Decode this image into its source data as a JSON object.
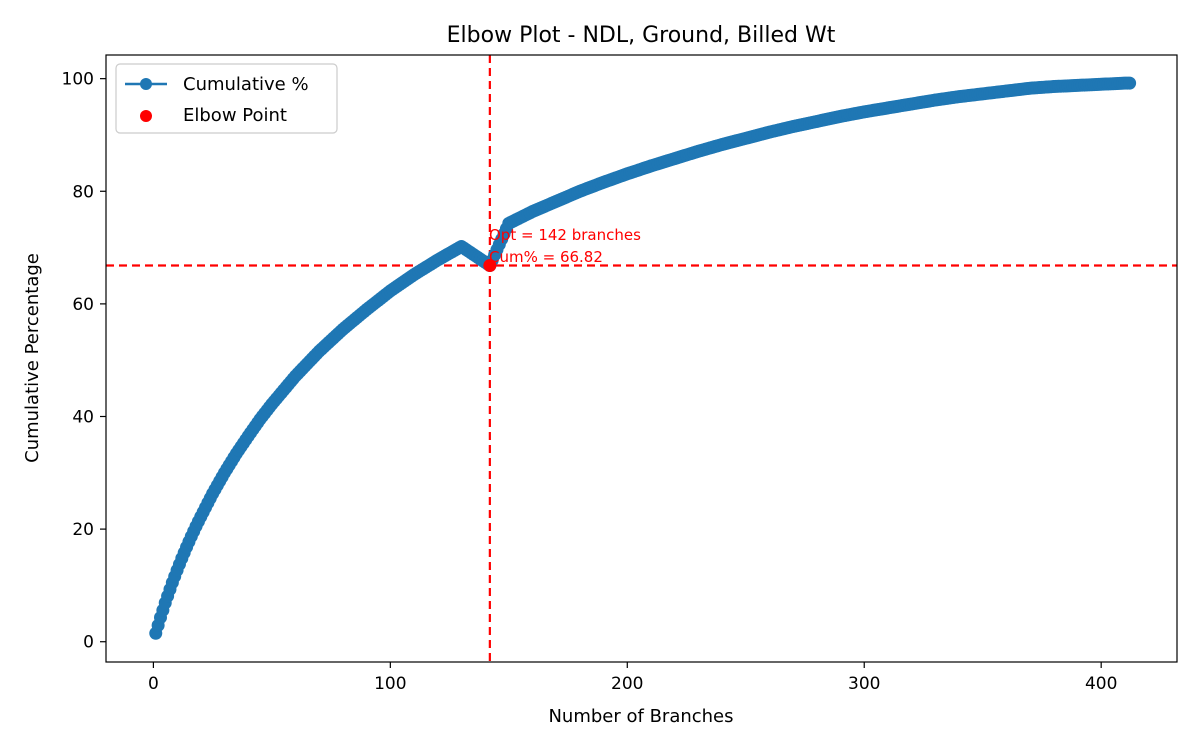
{
  "chart_data": {
    "type": "line",
    "title": "Elbow Plot - NDL, Ground, Billed Wt",
    "xlabel": "Number of Branches",
    "ylabel": "Cumulative Percentage",
    "xlim": [
      -20,
      432
    ],
    "ylim": [
      -3.6,
      104.2
    ],
    "xticks": [
      0,
      100,
      200,
      300,
      400
    ],
    "yticks": [
      0,
      20,
      40,
      60,
      80,
      100
    ],
    "grid": false,
    "legend_position": "top-left",
    "series": [
      {
        "name": "Cumulative %",
        "color": "#1f77b4",
        "marker": "circle",
        "x": [
          1,
          2,
          3,
          4,
          5,
          6,
          7,
          8,
          9,
          10,
          12,
          14,
          16,
          18,
          20,
          25,
          30,
          35,
          40,
          45,
          50,
          60,
          70,
          80,
          90,
          100,
          110,
          120,
          130,
          142,
          150,
          160,
          170,
          180,
          190,
          200,
          210,
          220,
          230,
          240,
          250,
          260,
          270,
          280,
          290,
          300,
          310,
          320,
          330,
          340,
          350,
          360,
          370,
          380,
          390,
          400,
          405,
          410,
          412
        ],
        "y": [
          1.5,
          2.9,
          4.3,
          5.6,
          6.9,
          8.1,
          9.3,
          10.5,
          11.6,
          12.7,
          14.8,
          16.8,
          18.7,
          20.5,
          22.2,
          26.3,
          30.0,
          33.4,
          36.5,
          39.5,
          42.2,
          47.2,
          51.6,
          55.5,
          59.0,
          62.3,
          65.2,
          67.8,
          70.2,
          66.82,
          74.3,
          76.4,
          78.2,
          80.0,
          81.6,
          83.1,
          84.5,
          85.8,
          87.1,
          88.3,
          89.4,
          90.5,
          91.5,
          92.4,
          93.3,
          94.1,
          94.8,
          95.5,
          96.2,
          96.8,
          97.3,
          97.8,
          98.3,
          98.6,
          98.8,
          99.0,
          99.1,
          99.2,
          99.2
        ]
      }
    ],
    "elbow": {
      "name": "Elbow Point",
      "x": 142,
      "y": 66.82,
      "color": "#ff0000",
      "annotation_line1": "Opt = 142 branches",
      "annotation_line2": "Cum% = 66.82"
    }
  }
}
